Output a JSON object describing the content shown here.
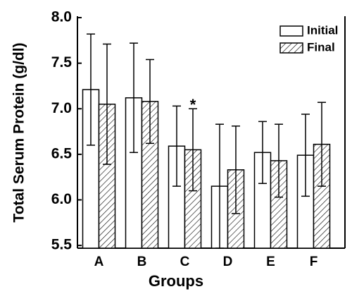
{
  "chart_data": {
    "type": "bar",
    "x_label": "Groups",
    "y_label": "Total Serum Protein (g/dl)",
    "categories": [
      "A",
      "B",
      "C",
      "D",
      "E",
      "F"
    ],
    "series": [
      {
        "name": "Initial",
        "color": "#000000",
        "hatch": false,
        "values": [
          7.21,
          7.12,
          6.59,
          6.15,
          6.52,
          6.49
        ],
        "errors": [
          0.61,
          0.6,
          0.44,
          0.68,
          0.34,
          0.45
        ]
      },
      {
        "name": "Final",
        "color": "#000000",
        "hatch": true,
        "values": [
          7.05,
          7.08,
          6.55,
          6.33,
          6.43,
          6.61
        ],
        "errors": [
          0.66,
          0.46,
          0.45,
          0.48,
          0.4,
          0.46
        ]
      }
    ],
    "annotations": [
      {
        "text": "*",
        "category": 2,
        "series": 1
      }
    ],
    "ylim": [
      5.47,
      8.0
    ],
    "yticks": [
      5.5,
      {
        "value": 6.0,
        "label": "6.0"
      },
      6.5,
      {
        "value": 7.0,
        "label": "7.0"
      },
      7.5,
      {
        "value": 8.0,
        "label": "8.0"
      }
    ],
    "legend": "top-right"
  }
}
